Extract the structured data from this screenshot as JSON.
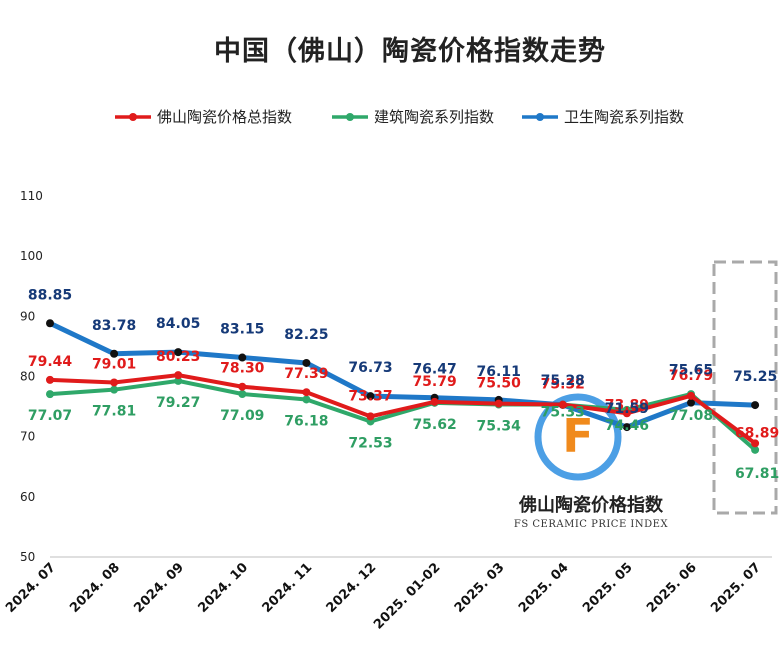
{
  "chart_data": {
    "type": "line",
    "title": "中国（佛山）陶瓷价格指数走势",
    "categories": [
      "2024.07",
      "2024.08",
      "2024.09",
      "2024.10",
      "2024.11",
      "2024.12",
      "2025.01-02",
      "2025.03",
      "2025.04",
      "2025.05",
      "2025.06",
      "2025.07"
    ],
    "ylim": [
      50,
      110
    ],
    "yticks": [
      50,
      60,
      70,
      80,
      90,
      100,
      110
    ],
    "grid": false,
    "legend_position": "top",
    "series": [
      {
        "name": "佛山陶瓷价格总指数",
        "color": "#e01b1b",
        "label_color": "#e01b1b",
        "values": [
          79.44,
          79.01,
          80.23,
          78.3,
          77.39,
          73.37,
          75.79,
          75.5,
          75.32,
          73.89,
          76.79,
          68.89
        ]
      },
      {
        "name": "建筑陶瓷系列指数",
        "color": "#2fa86a",
        "label_color": "#2f9e63",
        "values": [
          77.07,
          77.81,
          79.27,
          77.09,
          76.18,
          72.53,
          75.62,
          75.34,
          75.33,
          74.46,
          77.08,
          67.81
        ]
      },
      {
        "name": "卫生陶瓷系列指数",
        "color": "#1f78c8",
        "label_color": "#163a78",
        "values": [
          88.85,
          83.78,
          84.05,
          83.15,
          82.25,
          76.73,
          76.47,
          76.11,
          75.28,
          71.59,
          75.65,
          75.25
        ]
      }
    ],
    "labels": {
      "total": [
        "79.44",
        "79.01",
        "80.23",
        "78.30",
        "77.39",
        "73.37",
        "75.79",
        "75.50",
        "75.32",
        "73.89",
        "76.79",
        "68.89"
      ],
      "building": [
        "77.07",
        "77.81",
        "79.27",
        "77.09",
        "76.18",
        "72.53",
        "75.62",
        "75.34",
        "75.33",
        "74.46",
        "77.08",
        "67.81"
      ],
      "sanitary": [
        "88.85",
        "83.78",
        "84.05",
        "83.15",
        "82.25",
        "76.73",
        "76.47",
        "76.11",
        "75.28",
        "71.59",
        "75.65",
        "75.25"
      ]
    },
    "ytick_labels": [
      "50",
      "60",
      "70",
      "80",
      "90",
      "100",
      "110"
    ],
    "x_labels": [
      "2024. 07",
      "2024. 08",
      "2024. 09",
      "2024. 10",
      "2024. 11",
      "2024. 12",
      "2025. 01-02",
      "2025. 03",
      "2025. 04",
      "2025. 05",
      "2025. 06",
      "2025. 07"
    ],
    "highlight": "2025.07"
  },
  "watermark": {
    "title": "佛山陶瓷价格指数",
    "subtitle": "FS CERAMIC PRICE INDEX",
    "logo_letter": "F"
  }
}
